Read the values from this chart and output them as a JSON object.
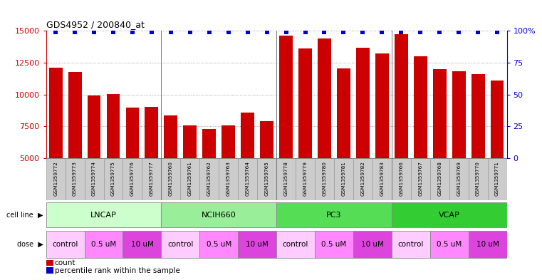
{
  "title": "GDS4952 / 200840_at",
  "samples": [
    "GSM1359772",
    "GSM1359773",
    "GSM1359774",
    "GSM1359775",
    "GSM1359776",
    "GSM1359777",
    "GSM1359760",
    "GSM1359761",
    "GSM1359762",
    "GSM1359763",
    "GSM1359764",
    "GSM1359765",
    "GSM1359778",
    "GSM1359779",
    "GSM1359780",
    "GSM1359781",
    "GSM1359782",
    "GSM1359783",
    "GSM1359766",
    "GSM1359767",
    "GSM1359768",
    "GSM1359769",
    "GSM1359770",
    "GSM1359771"
  ],
  "counts": [
    12100,
    11750,
    9950,
    10050,
    8950,
    9050,
    8350,
    7600,
    7300,
    7600,
    8600,
    7900,
    14600,
    13600,
    14400,
    12050,
    13650,
    13250,
    14750,
    13000,
    12000,
    11800,
    11600,
    11100
  ],
  "cell_lines": [
    {
      "name": "LNCAP",
      "start": 0,
      "end": 6,
      "color": "#ccffcc"
    },
    {
      "name": "NCIH660",
      "start": 6,
      "end": 12,
      "color": "#99ee99"
    },
    {
      "name": "PC3",
      "start": 12,
      "end": 18,
      "color": "#55dd55"
    },
    {
      "name": "VCAP",
      "start": 18,
      "end": 24,
      "color": "#33cc33"
    }
  ],
  "doses": [
    {
      "name": "control",
      "start": 0,
      "end": 2,
      "color": "#ffccff"
    },
    {
      "name": "0.5 uM",
      "start": 2,
      "end": 4,
      "color": "#ff88ff"
    },
    {
      "name": "10 uM",
      "start": 4,
      "end": 6,
      "color": "#dd44dd"
    },
    {
      "name": "control",
      "start": 6,
      "end": 8,
      "color": "#ffccff"
    },
    {
      "name": "0.5 uM",
      "start": 8,
      "end": 10,
      "color": "#ff88ff"
    },
    {
      "name": "10 uM",
      "start": 10,
      "end": 12,
      "color": "#dd44dd"
    },
    {
      "name": "control",
      "start": 12,
      "end": 14,
      "color": "#ffccff"
    },
    {
      "name": "0.5 uM",
      "start": 14,
      "end": 16,
      "color": "#ff88ff"
    },
    {
      "name": "10 uM",
      "start": 16,
      "end": 18,
      "color": "#dd44dd"
    },
    {
      "name": "control",
      "start": 18,
      "end": 20,
      "color": "#ffccff"
    },
    {
      "name": "0.5 uM",
      "start": 20,
      "end": 22,
      "color": "#ff88ff"
    },
    {
      "name": "10 uM",
      "start": 22,
      "end": 24,
      "color": "#dd44dd"
    }
  ],
  "bar_color": "#cc0000",
  "percentile_color": "#0000cc",
  "ylim_left": [
    5000,
    15000
  ],
  "yticks_left": [
    5000,
    7500,
    10000,
    12500,
    15000
  ],
  "ylim_right": [
    0,
    100
  ],
  "yticks_right": [
    0,
    25,
    50,
    75,
    100
  ],
  "ylabel_left_color": "#cc0000",
  "ylabel_right_color": "#0000cc",
  "background_color": "#ffffff",
  "grid_color": "#888888",
  "sample_bg_color": "#cccccc",
  "legend_count_color": "#cc0000",
  "legend_pct_color": "#0000cc"
}
